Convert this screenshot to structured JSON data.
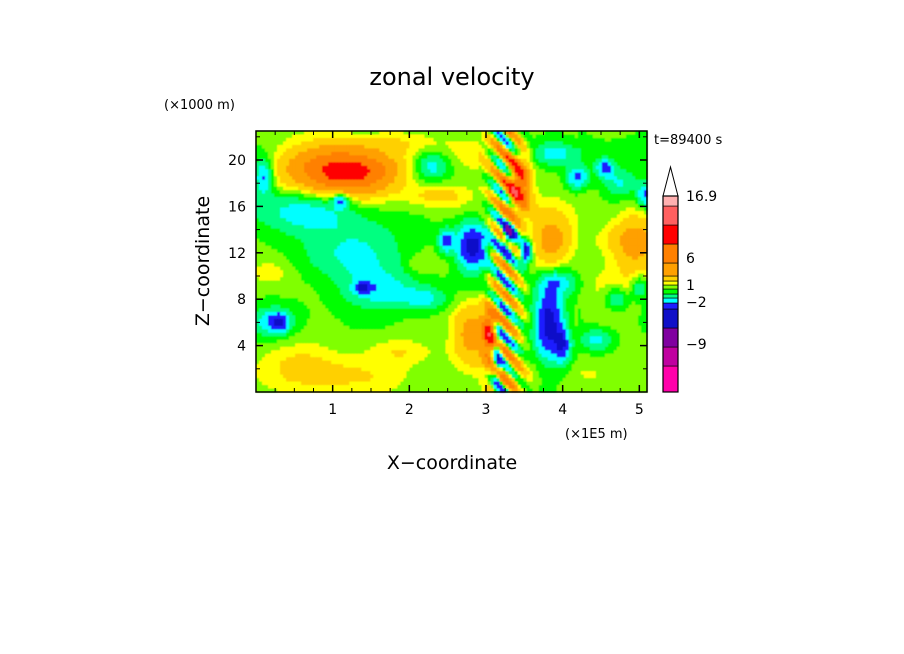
{
  "chart_data": {
    "type": "heatmap",
    "title": "zonal velocity",
    "xlabel": "X−coordinate",
    "ylabel": "Z−coordinate",
    "x_unit": "(×1E5 m)",
    "y_unit": "(×1000 m)",
    "time_label": "t=89400 s",
    "xlim": [
      0,
      5.1
    ],
    "ylim": [
      0,
      22.5
    ],
    "x_ticks": [
      "1",
      "2",
      "3",
      "4",
      "5"
    ],
    "x_tick_values": [
      1,
      2,
      3,
      4,
      5
    ],
    "y_ticks": [
      "4",
      "8",
      "12",
      "16",
      "20"
    ],
    "y_tick_values": [
      4,
      8,
      12,
      16,
      20
    ],
    "colorbar": {
      "labels": [
        {
          "text": "16.9",
          "value": 16.9
        },
        {
          "text": "6",
          "value": 6
        },
        {
          "text": "1",
          "value": 1
        },
        {
          "text": "−2",
          "value": -2
        },
        {
          "text": "−9",
          "value": -9
        }
      ],
      "bins": [
        {
          "color": "#ff00aa",
          "value": -12
        },
        {
          "color": "#c000a0",
          "value": -10
        },
        {
          "color": "#8000a0",
          "value": -8
        },
        {
          "color": "#1010c8",
          "value": -6
        },
        {
          "color": "#1e1eff",
          "value": -4
        },
        {
          "color": "#00ffff",
          "value": -2.5
        },
        {
          "color": "#00ff80",
          "value": -1.5
        },
        {
          "color": "#00ff00",
          "value": -0.5
        },
        {
          "color": "#80ff00",
          "value": 0.3
        },
        {
          "color": "#ffff00",
          "value": 0.8
        },
        {
          "color": "#ffd000",
          "value": 1.5
        },
        {
          "color": "#ffa000",
          "value": 3
        },
        {
          "color": "#ff8000",
          "value": 5
        },
        {
          "color": "#ff0000",
          "value": 7
        },
        {
          "color": "#ff6060",
          "value": 10
        },
        {
          "color": "#ffb0b0",
          "value": 14
        }
      ]
    },
    "blobs": [
      {
        "x": 1.15,
        "z": 19.0,
        "w": 0.55,
        "h": 2.0,
        "v": 6
      },
      {
        "x": 3.05,
        "z": 5.0,
        "w": 0.1,
        "h": 2.2,
        "v": 6
      },
      {
        "x": 3.42,
        "z": 17.8,
        "w": 0.15,
        "h": 2.4,
        "v": 7
      },
      {
        "x": 3.82,
        "z": 6.0,
        "w": 0.18,
        "h": 3.0,
        "v": -6
      },
      {
        "x": 2.82,
        "z": 12.5,
        "w": 0.2,
        "h": 2.0,
        "v": -6
      },
      {
        "x": 3.52,
        "z": 12.0,
        "w": 0.07,
        "h": 1.0,
        "v": -6
      },
      {
        "x": 3.3,
        "z": 13.5,
        "w": 0.08,
        "h": 1.0,
        "v": -6
      },
      {
        "x": 0.1,
        "z": 18.5,
        "w": 0.12,
        "h": 1.5,
        "v": -4
      },
      {
        "x": 4.2,
        "z": 18.5,
        "w": 0.15,
        "h": 1.0,
        "v": -4
      },
      {
        "x": 4.55,
        "z": 19.3,
        "w": 0.12,
        "h": 0.8,
        "v": -4
      },
      {
        "x": 5.08,
        "z": 17.0,
        "w": 0.1,
        "h": 1.0,
        "v": -4
      },
      {
        "x": 1.1,
        "z": 16.5,
        "w": 0.1,
        "h": 0.6,
        "v": -4
      },
      {
        "x": 2.48,
        "z": 13.0,
        "w": 0.1,
        "h": 1.0,
        "v": -4
      },
      {
        "x": 0.3,
        "z": 6.0,
        "w": 0.12,
        "h": 0.8,
        "v": -4
      },
      {
        "x": 1.4,
        "z": 9.0,
        "w": 0.1,
        "h": 0.5,
        "v": -4
      },
      {
        "x": 3.15,
        "z": 3.0,
        "w": 0.06,
        "h": 2.5,
        "v": -4
      },
      {
        "x": 4.0,
        "z": 4.0,
        "w": 0.1,
        "h": 1.5,
        "v": -4
      },
      {
        "x": 0.6,
        "z": 15.5,
        "w": 0.7,
        "h": 2.0,
        "v": -2.5
      },
      {
        "x": 1.3,
        "z": 12.0,
        "w": 0.6,
        "h": 2.5,
        "v": -2.5
      },
      {
        "x": 1.6,
        "z": 8.7,
        "w": 0.5,
        "h": 1.5,
        "v": -2.5
      },
      {
        "x": 2.2,
        "z": 8.0,
        "w": 0.3,
        "h": 1.0,
        "v": -2.5
      },
      {
        "x": 0.2,
        "z": 6.0,
        "w": 0.3,
        "h": 1.2,
        "v": -2.5
      },
      {
        "x": 3.95,
        "z": 9.5,
        "w": 0.25,
        "h": 1.0,
        "v": -2.5
      },
      {
        "x": 3.9,
        "z": 20.5,
        "w": 0.3,
        "h": 1.0,
        "v": -2.5
      },
      {
        "x": 4.75,
        "z": 18.0,
        "w": 0.25,
        "h": 1.2,
        "v": -2.5
      },
      {
        "x": 5.0,
        "z": 9.0,
        "w": 0.1,
        "h": 1.0,
        "v": -2.5
      },
      {
        "x": 2.3,
        "z": 19.5,
        "w": 0.2,
        "h": 1.2,
        "v": -2.5
      },
      {
        "x": 4.7,
        "z": 8.0,
        "w": 0.15,
        "h": 1.0,
        "v": -2.5
      },
      {
        "x": 4.45,
        "z": 4.5,
        "w": 0.2,
        "h": 1.0,
        "v": -2.5
      },
      {
        "x": 2.8,
        "z": 5.0,
        "w": 0.25,
        "h": 2.5,
        "v": 3
      },
      {
        "x": 3.85,
        "z": 13.0,
        "w": 0.25,
        "h": 2.0,
        "v": 3
      },
      {
        "x": 4.95,
        "z": 13.0,
        "w": 0.3,
        "h": 2.5,
        "v": 3
      },
      {
        "x": 1.55,
        "z": 19.2,
        "w": 0.4,
        "h": 1.2,
        "v": 1.5
      },
      {
        "x": 0.7,
        "z": 19.8,
        "w": 0.5,
        "h": 1.5,
        "v": 1.5
      },
      {
        "x": 0.9,
        "z": 18.0,
        "w": 1.0,
        "h": 1.5,
        "v": 0.8
      },
      {
        "x": 1.05,
        "z": 1.5,
        "w": 0.9,
        "h": 1.5,
        "v": 1.5
      },
      {
        "x": 0.5,
        "z": 3.0,
        "w": 0.6,
        "h": 1.2,
        "v": 0.8
      },
      {
        "x": 2.95,
        "z": 20.5,
        "w": 0.5,
        "h": 1.5,
        "v": 0.8
      },
      {
        "x": 1.9,
        "z": 21.5,
        "w": 0.8,
        "h": 1.0,
        "v": 0.8
      },
      {
        "x": 3.75,
        "z": 16.0,
        "w": 0.4,
        "h": 1.5,
        "v": 0.8
      },
      {
        "x": 4.55,
        "z": 13.0,
        "w": 0.3,
        "h": 1.5,
        "v": 0.8
      },
      {
        "x": 4.6,
        "z": 7.5,
        "w": 0.35,
        "h": 2.0,
        "v": 0.8
      },
      {
        "x": 2.4,
        "z": 17.0,
        "w": 0.4,
        "h": 1.0,
        "v": 1.5
      },
      {
        "x": 3.3,
        "z": 1.5,
        "w": 0.3,
        "h": 1.5,
        "v": 1.5
      },
      {
        "x": 1.9,
        "z": 3.5,
        "w": 0.4,
        "h": 1.0,
        "v": 0.8
      },
      {
        "x": 0.25,
        "z": 10.5,
        "w": 0.3,
        "h": 1.5,
        "v": 0.8
      },
      {
        "x": 2.1,
        "z": 11.0,
        "w": 0.15,
        "h": 0.8,
        "v": 0.8
      }
    ]
  }
}
